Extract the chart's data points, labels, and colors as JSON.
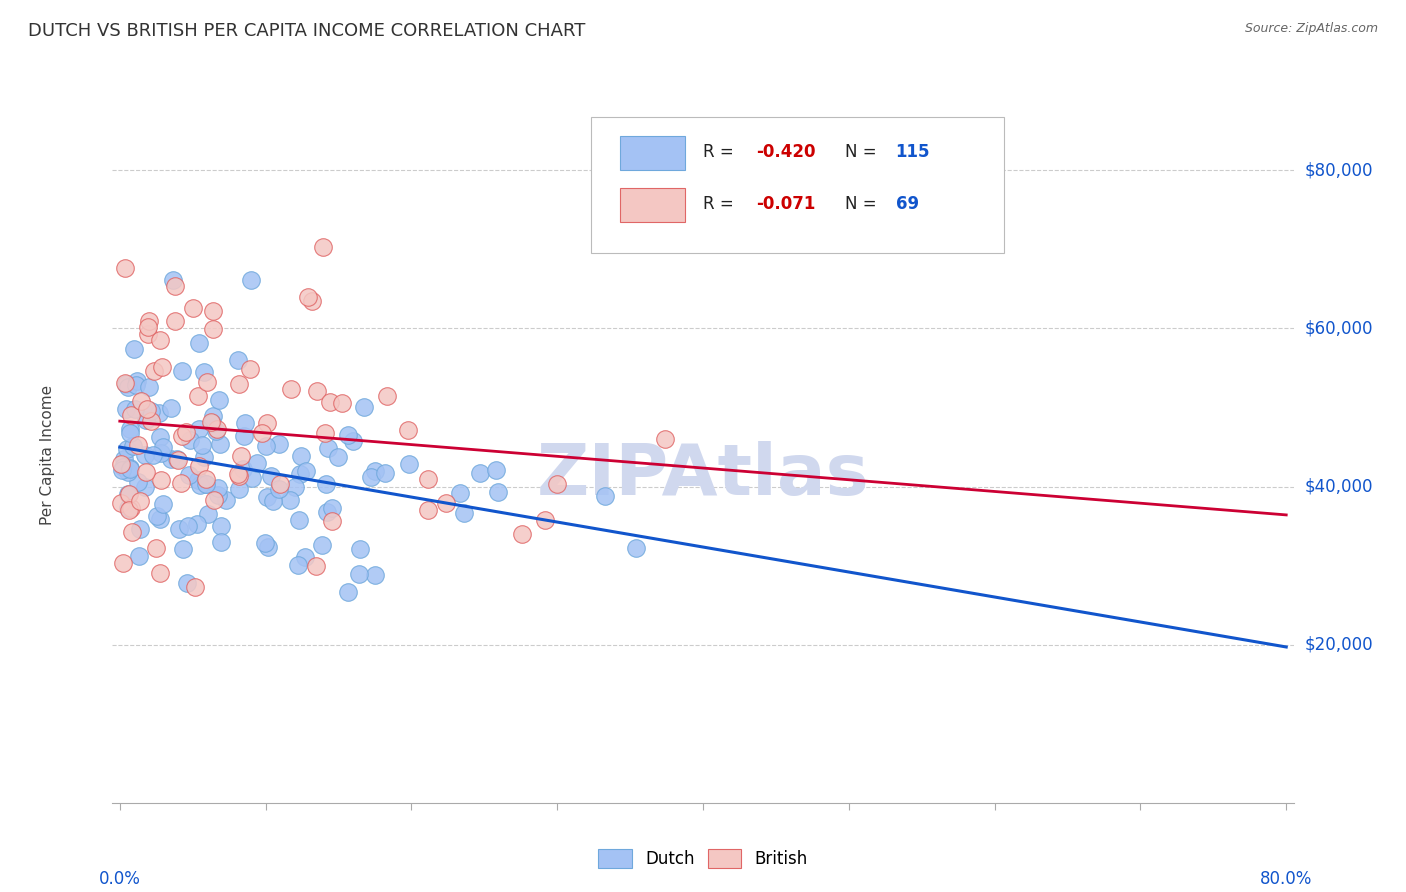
{
  "title": "DUTCH VS BRITISH PER CAPITA INCOME CORRELATION CHART",
  "source": "Source: ZipAtlas.com",
  "ylabel": "Per Capita Income",
  "x_range": [
    0.0,
    0.8
  ],
  "y_range": [
    0,
    88000
  ],
  "dutch_R": -0.42,
  "dutch_N": 115,
  "british_R": -0.071,
  "british_N": 69,
  "dutch_color": "#a4c2f4",
  "dutch_edge_color": "#6fa8dc",
  "british_color": "#f4c7c3",
  "british_edge_color": "#e06666",
  "dutch_line_color": "#1155cc",
  "british_line_color": "#cc0033",
  "watermark": "ZIPAtlas",
  "watermark_color": "#d0d8ee",
  "background_color": "#ffffff",
  "legend_label_dutch": "Dutch",
  "legend_label_british": "British",
  "y_tick_vals": [
    20000,
    40000,
    60000,
    80000
  ],
  "y_tick_labels": [
    "$20,000",
    "$40,000",
    "$60,000",
    "$80,000"
  ],
  "y_label_color": "#1155cc",
  "grid_color": "#cccccc",
  "title_color": "#333333",
  "source_color": "#666666",
  "axis_label_color": "#1155cc",
  "dutch_intercept": 44000,
  "dutch_slope": -18000,
  "dutch_noise": 7500,
  "british_intercept": 46500,
  "british_slope": -8000,
  "british_noise": 10000
}
